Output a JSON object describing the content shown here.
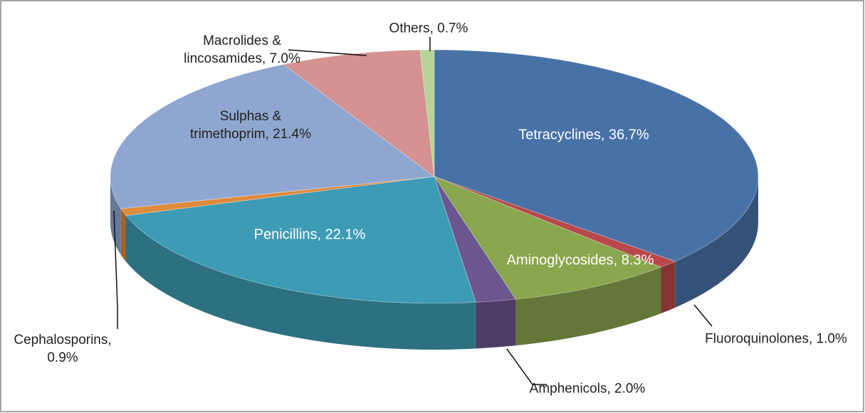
{
  "chart_data": {
    "type": "pie",
    "categories": [
      "Tetracyclines,",
      "Fluoroquinolones,",
      "Aminoglycosides,",
      "Amphenicols,",
      "Penicillins,",
      "Cephalosporins,",
      "Sulphas & trimethoprim,",
      "Macrolides & lincosamides,",
      "Others,"
    ],
    "values": [
      36.7,
      1.0,
      8.3,
      2.0,
      22.1,
      0.9,
      21.4,
      7.0,
      0.7
    ],
    "value_labels": [
      "36.7%",
      "1.0%",
      "8.3%",
      "2.0%",
      "22.1%",
      "0.9%",
      "21.4%",
      "7.0%",
      "0.7%"
    ],
    "colors": [
      "#4872a6",
      "#b8484a",
      "#8aa64e",
      "#6d558f",
      "#3e9bb5",
      "#e08a3c",
      "#8fa7d0",
      "#d49291",
      "#b8d39a"
    ]
  }
}
